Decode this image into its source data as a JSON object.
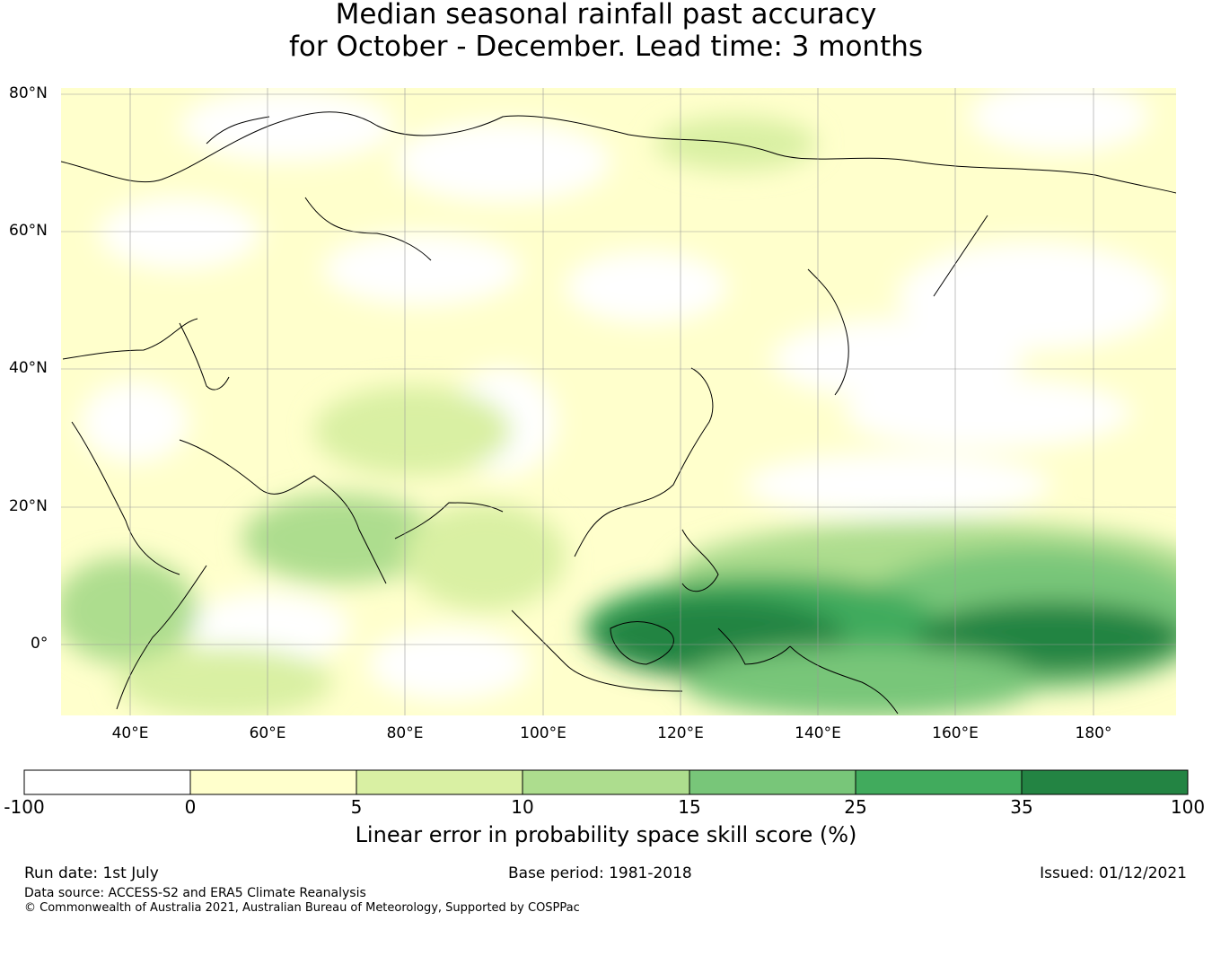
{
  "title": {
    "line1": "Median seasonal rainfall past accuracy",
    "line2": "for October - December. Lead time: 3 months"
  },
  "map": {
    "lat_labels": [
      "80°N",
      "60°N",
      "40°N",
      "20°N",
      "0°"
    ],
    "lon_labels": [
      "40°E",
      "60°E",
      "80°E",
      "100°E",
      "120°E",
      "140°E",
      "160°E",
      "180°"
    ],
    "colors": {
      "background": "#ffffff",
      "coastline": "#000000",
      "gridline": "#999999"
    }
  },
  "colorbar": {
    "ticks": [
      "-100",
      "0",
      "5",
      "10",
      "15",
      "25",
      "35",
      "100"
    ],
    "colors": [
      "#ffffff",
      "#ffffcc",
      "#d9f0a3",
      "#addd8e",
      "#78c679",
      "#41ab5d",
      "#238443"
    ],
    "label": "Linear error in probability space skill score (%)"
  },
  "footer": {
    "run_date": "Run date: 1st July",
    "base_period": "Base period: 1981-2018",
    "issued": "Issued: 01/12/2021",
    "data_source": "Data source: ACCESS-S2 and ERA5 Climate Reanalysis",
    "copyright": "© Commonwealth of Australia 2021, Australian Bureau of Meteorology, Supported by COSPPac"
  }
}
